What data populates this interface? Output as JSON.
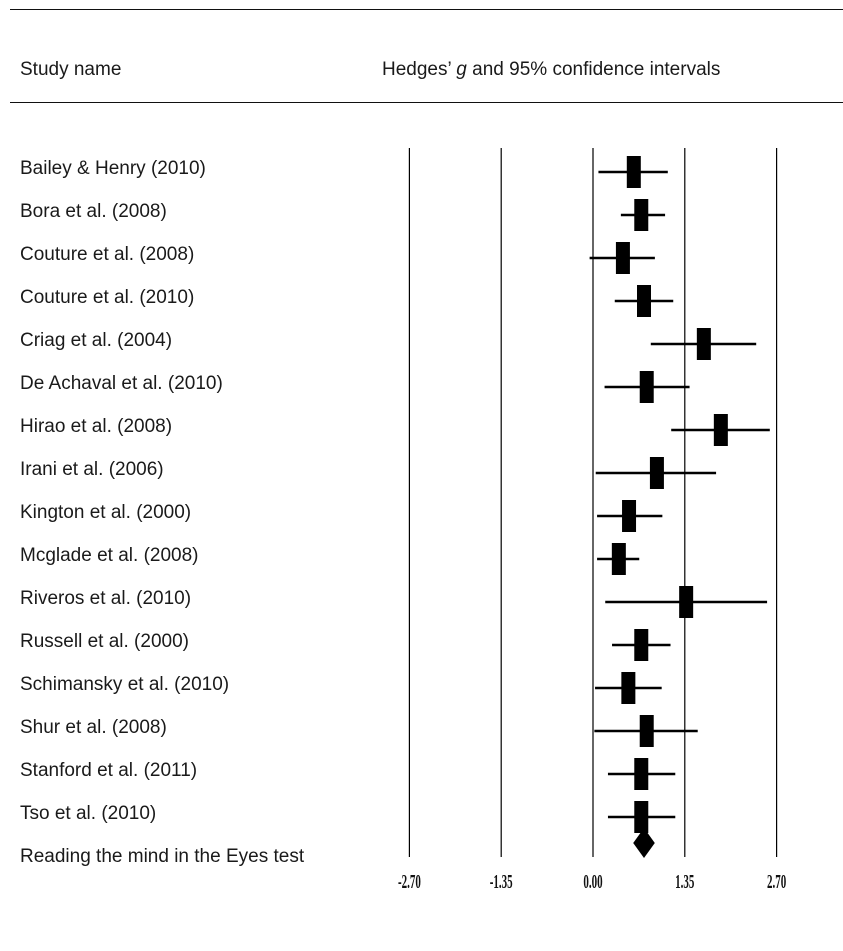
{
  "header": {
    "study_col": "Study name",
    "effect_col_pre": "Hedges’ ",
    "effect_col_var": "g",
    "effect_col_post": " and 95% confidence intervals"
  },
  "chart_data": {
    "type": "forest",
    "x_axis": {
      "ticks": [
        -2.7,
        -1.35,
        0.0,
        1.35,
        2.7
      ],
      "tick_labels": [
        "-2.70",
        "-1.35",
        "0.00",
        "1.35",
        "2.70"
      ]
    },
    "studies": [
      {
        "name": "Bailey & Henry (2010)",
        "g": 0.6,
        "lower": 0.08,
        "upper": 1.1
      },
      {
        "name": "Bora et al. (2008)",
        "g": 0.71,
        "lower": 0.41,
        "upper": 1.06
      },
      {
        "name": "Couture et al. (2008)",
        "g": 0.44,
        "lower": -0.05,
        "upper": 0.91
      },
      {
        "name": "Couture et al. (2010)",
        "g": 0.75,
        "lower": 0.32,
        "upper": 1.18
      },
      {
        "name": "Criag et al. (2004)",
        "g": 1.63,
        "lower": 0.85,
        "upper": 2.4
      },
      {
        "name": "De Achaval et al. (2010)",
        "g": 0.79,
        "lower": 0.17,
        "upper": 1.42
      },
      {
        "name": "Hirao et al. (2008)",
        "g": 1.88,
        "lower": 1.15,
        "upper": 2.6
      },
      {
        "name": "Irani et al. (2006)",
        "g": 0.94,
        "lower": 0.04,
        "upper": 1.81
      },
      {
        "name": "Kington et al. (2000)",
        "g": 0.53,
        "lower": 0.06,
        "upper": 1.02
      },
      {
        "name": "Mcglade et al. (2008)",
        "g": 0.38,
        "lower": 0.06,
        "upper": 0.68
      },
      {
        "name": "Riveros et al. (2010)",
        "g": 1.37,
        "lower": 0.18,
        "upper": 2.56
      },
      {
        "name": "Russell et al. (2000)",
        "g": 0.71,
        "lower": 0.28,
        "upper": 1.14
      },
      {
        "name": "Schimansky et al. (2010)",
        "g": 0.52,
        "lower": 0.03,
        "upper": 1.01
      },
      {
        "name": "Shur et al. (2008)",
        "g": 0.79,
        "lower": 0.02,
        "upper": 1.54
      },
      {
        "name": "Stanford et al. (2011)",
        "g": 0.71,
        "lower": 0.22,
        "upper": 1.21
      },
      {
        "name": "Tso et al. (2010)",
        "g": 0.71,
        "lower": 0.22,
        "upper": 1.21
      }
    ],
    "summary": {
      "name": "Reading the mind in the Eyes test",
      "g": 0.75,
      "lower": 0.65,
      "upper": 0.85
    }
  }
}
